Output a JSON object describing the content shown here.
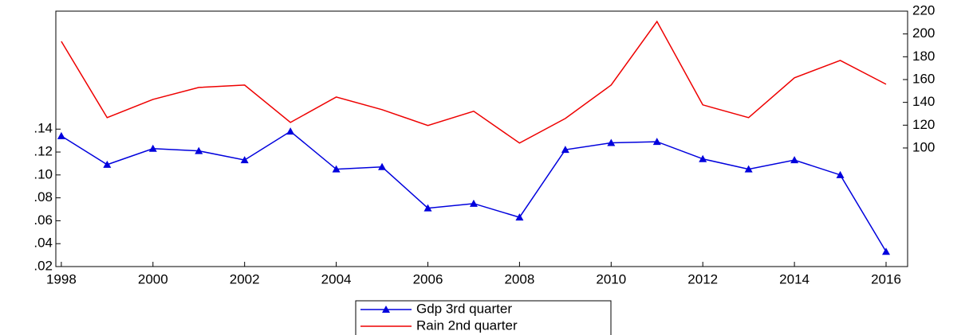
{
  "chart_data": {
    "type": "line",
    "x": [
      1998,
      1999,
      2000,
      2001,
      2002,
      2003,
      2004,
      2005,
      2006,
      2007,
      2008,
      2009,
      2010,
      2011,
      2012,
      2013,
      2014,
      2015,
      2016
    ],
    "series": [
      {
        "name": "Gdp 3rd quarter",
        "color": "#0000dd",
        "marker": "triangle",
        "values": [
          0.134,
          0.109,
          0.123,
          0.121,
          0.113,
          0.138,
          0.105,
          0.107,
          0.071,
          0.075,
          0.063,
          0.122,
          0.128,
          0.129,
          0.114,
          0.105,
          0.113,
          0.1,
          0.033
        ]
      },
      {
        "name": "Rain 2nd quarter",
        "color": "#ee0000",
        "axis": "y2",
        "values": [
          193.5,
          126.6,
          142.6,
          153.1,
          155.2,
          122.4,
          144.7,
          133.6,
          119.7,
          132.2,
          104.3,
          125.9,
          155.2,
          210.9,
          137.8,
          126.6,
          161.5,
          176.8,
          155.9
        ]
      }
    ],
    "xlim": [
      1997.88,
      2016.47
    ],
    "xticks": [
      1998,
      2000,
      2002,
      2004,
      2006,
      2008,
      2010,
      2012,
      2014,
      2016
    ],
    "ylim": [
      0.02,
      0.243
    ],
    "yticks": [
      {
        "value": 0.02,
        "label": ".02"
      },
      {
        "value": 0.04,
        "label": ".04"
      },
      {
        "value": 0.06,
        "label": ".06"
      },
      {
        "value": 0.08,
        "label": ".08"
      },
      {
        "value": 0.1,
        "label": ".10"
      },
      {
        "value": 0.12,
        "label": ".12"
      },
      {
        "value": 0.14,
        "label": ".14"
      }
    ],
    "y2lim": [
      -4,
      220
    ],
    "y2ticks": [
      100,
      120,
      140,
      160,
      180,
      200,
      220
    ],
    "legend": "bottom"
  }
}
